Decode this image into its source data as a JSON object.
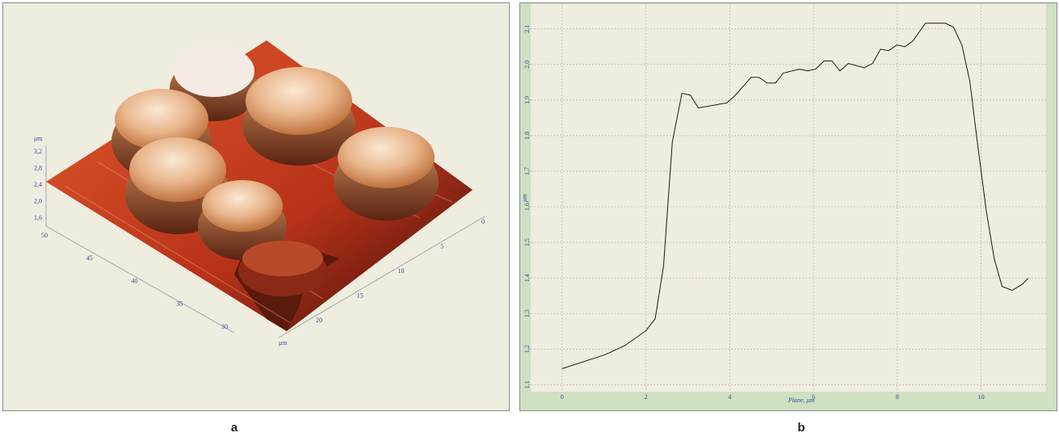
{
  "chart_data": [
    {
      "type": "surface3d",
      "panel_label": "a",
      "zlabel": "μm",
      "xlabel": "μm",
      "zticks": [
        {
          "value": 3.2,
          "label": "3,2"
        },
        {
          "value": 2.8,
          "label": "2,8"
        },
        {
          "value": 2.4,
          "label": "2,4"
        },
        {
          "value": 2.0,
          "label": "2,0"
        },
        {
          "value": 1.6,
          "label": "1,6"
        }
      ],
      "yticks": [
        50,
        45,
        40,
        35,
        30
      ],
      "xticks": [
        0,
        5,
        10,
        15,
        20
      ]
    },
    {
      "type": "line",
      "panel_label": "b",
      "xlabel": "Plane, μm",
      "ylabel": "μm",
      "xlim": [
        -0.75,
        11.55
      ],
      "ylim": [
        1.08,
        2.17
      ],
      "xticks": [
        0,
        2,
        4,
        6,
        8,
        10
      ],
      "yticks": [
        {
          "value": 1.1,
          "label": "1,1"
        },
        {
          "value": 1.2,
          "label": "1,2"
        },
        {
          "value": 1.3,
          "label": "1,3"
        },
        {
          "value": 1.4,
          "label": "1,4"
        },
        {
          "value": 1.5,
          "label": "1,5"
        },
        {
          "value": 1.6,
          "label": "1,6"
        },
        {
          "value": 1.7,
          "label": "1,7"
        },
        {
          "value": 1.8,
          "label": "1,8"
        },
        {
          "value": 1.9,
          "label": "1,9"
        },
        {
          "value": 2.0,
          "label": "2,0"
        },
        {
          "value": 2.1,
          "label": "2,1"
        }
      ],
      "grid": true,
      "color": "#1a1a1a",
      "x": [
        0,
        1.02,
        1.5,
        2.0,
        2.22,
        2.42,
        2.63,
        2.86,
        3.06,
        3.25,
        3.93,
        4.12,
        4.51,
        4.7,
        4.89,
        5.09,
        5.28,
        5.67,
        5.86,
        6.05,
        6.25,
        6.44,
        6.63,
        6.83,
        7.21,
        7.41,
        7.6,
        7.79,
        7.99,
        8.18,
        8.37,
        8.67,
        9.15,
        9.34,
        9.54,
        9.73,
        9.92,
        10.12,
        10.31,
        10.5,
        10.74,
        10.99,
        11.12
      ],
      "values": [
        1.145,
        1.184,
        1.21,
        1.252,
        1.285,
        1.433,
        1.783,
        1.919,
        1.914,
        1.878,
        1.892,
        1.912,
        1.964,
        1.964,
        1.948,
        1.948,
        1.976,
        1.987,
        1.982,
        1.987,
        2.01,
        2.01,
        1.982,
        2.003,
        1.991,
        2.003,
        2.043,
        2.039,
        2.055,
        2.05,
        2.066,
        2.116,
        2.116,
        2.105,
        2.055,
        1.953,
        1.772,
        1.591,
        1.455,
        1.376,
        1.365,
        1.383,
        1.399
      ]
    }
  ]
}
